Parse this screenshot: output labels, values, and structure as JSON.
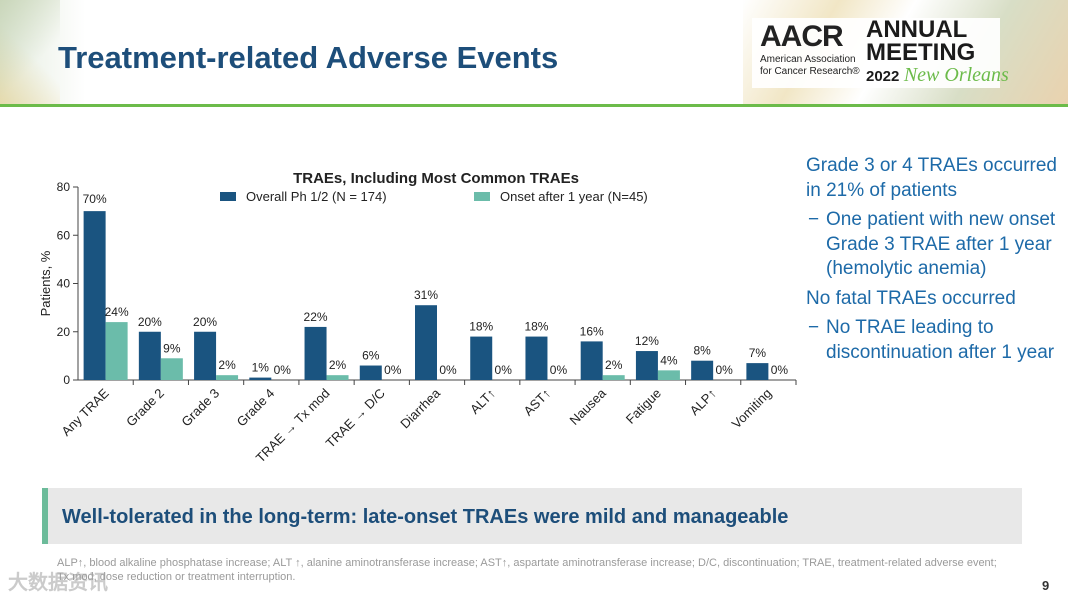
{
  "slide": {
    "title": "Treatment-related Adverse Events",
    "page_number": "9"
  },
  "logo": {
    "org": "AACR",
    "org_sub_1": "American Association",
    "org_sub_2": "for Cancer Research®",
    "event_1": "ANNUAL",
    "event_2": "MEETING",
    "year": "2022",
    "city": "New Orleans"
  },
  "right_panel": {
    "p1": "Grade 3 or 4 TRAEs occurred in 21% of patients",
    "b1": "One patient with new onset Grade 3 TRAE after 1 year (hemolytic anemia)",
    "p2": "No fatal TRAEs occurred",
    "b2": "No TRAE leading to discontinuation after 1 year",
    "dash": "−"
  },
  "banner": {
    "text": "Well-tolerated in the long-term: late-onset TRAEs were mild and manageable"
  },
  "footnote": "ALP↑, blood alkaline phosphatase increase; ALT ↑, alanine aminotransferase increase; AST↑, aspartate aminotransferase increase; D/C, discontinuation; TRAE, treatment-related adverse event; Tx mod, dose reduction or treatment interruption.",
  "watermark": "大数据资讯",
  "chart_data": {
    "type": "bar",
    "title": "TRAEs, Including Most Common TRAEs",
    "ylabel": "Patients, %",
    "xlabel": "",
    "ylim": [
      0,
      80
    ],
    "yticks": [
      "0",
      "20",
      "40",
      "60",
      "80"
    ],
    "categories": [
      "Any TRAE",
      "Grade 2",
      "Grade 3",
      "Grade 4",
      "TRAE → Tx mod",
      "TRAE → D/C",
      "Diarrhea",
      "ALT↑",
      "AST↑",
      "Nausea",
      "Fatigue",
      "ALP↑",
      "Vomiting"
    ],
    "series": [
      {
        "name": "Overall Ph 1/2 (N = 174)",
        "color": "#1a5480",
        "values": [
          70,
          20,
          20,
          1,
          22,
          6,
          31,
          18,
          18,
          16,
          12,
          8,
          7
        ],
        "labels": [
          "70%",
          "20%",
          "20%",
          "1%",
          "22%",
          "6%",
          "31%",
          "18%",
          "18%",
          "16%",
          "12%",
          "8%",
          "7%"
        ]
      },
      {
        "name": "Onset after 1 year (N=45)",
        "color": "#6bbcaa",
        "values": [
          24,
          9,
          2,
          0,
          2,
          0,
          0,
          0,
          0,
          2,
          4,
          0,
          0
        ],
        "labels": [
          "24%",
          "9%",
          "2%",
          "0%",
          "2%",
          "0%",
          "0%",
          "0%",
          "0%",
          "2%",
          "4%",
          "0%",
          "0%"
        ]
      }
    ]
  }
}
